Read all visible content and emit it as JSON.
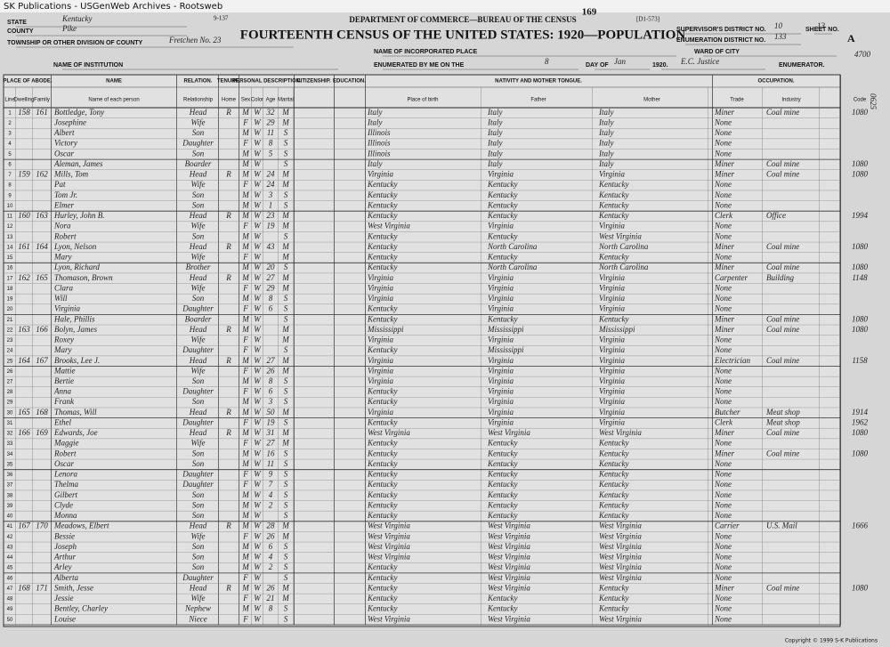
{
  "window": {
    "title": "SK Publications - USGenWeb Archives - Rootsweb"
  },
  "header": {
    "form_number": "9-137",
    "page": "169",
    "code": "[D1-573]",
    "department": "DEPARTMENT OF COMMERCE—BUREAU OF THE CENSUS",
    "title": "FOURTEENTH CENSUS OF THE UNITED STATES: 1920—POPULATION",
    "fields": [
      {
        "label": "STATE",
        "value": "Kentucky"
      },
      {
        "label": "COUNTY",
        "value": "Pike"
      },
      {
        "label": "TOWNSHIP OR OTHER DIVISION OF COUNTY",
        "value": "Fretchen No. 23"
      },
      {
        "label": "NAME OF INSTITUTION"
      },
      {
        "label": "NAME OF INCORPORATED PLACE"
      },
      {
        "label": "ENUMERATED BY ME ON THE",
        "value": "8"
      },
      {
        "label": "DAY OF",
        "value": "Jan"
      },
      {
        "label": "1920.",
        "value": "E.C. Justice"
      },
      {
        "label": "ENUMERATOR."
      },
      {
        "label": "SUPERVISOR'S DISTRICT NO.",
        "value": "10"
      },
      {
        "label": "SHEET NO.",
        "value": "13"
      },
      {
        "label": "ENUMERATION DISTRICT NO.",
        "value": "133"
      },
      {
        "label": "WARD OF CITY"
      },
      {
        "label": "A"
      }
    ],
    "margin_notes": [
      "4700",
      "0625"
    ]
  },
  "table": {
    "groups": [
      "PLACE OF ABODE.",
      "NAME",
      "RELATION.",
      "TENURE.",
      "PERSONAL DESCRIPTION.",
      "CITIZENSHIP.",
      "EDUCATION.",
      "NATIVITY AND MOTHER TONGUE.",
      "OCCUPATION."
    ],
    "columns": [
      "Line",
      "Dwelling",
      "Family",
      "Name of each person",
      "Relationship",
      "Home",
      "Sex",
      "Color",
      "Age",
      "Marital",
      "Place of birth",
      "Father",
      "Mother",
      "Trade",
      "Industry",
      "Code"
    ],
    "rows": [
      [
        1,
        158,
        161,
        "Bottledge, Tony",
        "Head",
        "R",
        "M",
        "W",
        32,
        "M",
        "Italy",
        "Italy",
        "Italy",
        "Miner",
        "Coal mine",
        "1080"
      ],
      [
        2,
        null,
        null,
        "Josephine",
        "Wife",
        null,
        "F",
        "W",
        29,
        "M",
        "Italy",
        "Italy",
        "Italy",
        "None",
        null,
        null
      ],
      [
        3,
        null,
        null,
        "Albert",
        "Son",
        null,
        "M",
        "W",
        11,
        "S",
        "Illinois",
        "Italy",
        "Italy",
        "None",
        null,
        null
      ],
      [
        4,
        null,
        null,
        "Victory",
        "Daughter",
        null,
        "F",
        "W",
        8,
        "S",
        "Illinois",
        "Italy",
        "Italy",
        "None",
        null,
        null
      ],
      [
        5,
        null,
        null,
        "Oscar",
        "Son",
        null,
        "M",
        "W",
        5,
        "S",
        "Illinois",
        "Italy",
        "Italy",
        "None",
        null,
        null
      ],
      [
        6,
        null,
        null,
        "Aleman, James",
        "Boarder",
        null,
        "M",
        "W",
        null,
        "S",
        "Italy",
        "Italy",
        "Italy",
        "Miner",
        "Coal mine",
        "1080"
      ],
      [
        7,
        159,
        162,
        "Mills, Tom",
        "Head",
        "R",
        "M",
        "W",
        24,
        "M",
        "Virginia",
        "Virginia",
        "Virginia",
        "Miner",
        "Coal mine",
        "1080"
      ],
      [
        8,
        null,
        null,
        "Pat",
        "Wife",
        null,
        "F",
        "W",
        24,
        "M",
        "Kentucky",
        "Kentucky",
        "Kentucky",
        "None",
        null,
        null
      ],
      [
        9,
        null,
        null,
        "Tom Jr.",
        "Son",
        null,
        "M",
        "W",
        3,
        "S",
        "Kentucky",
        "Kentucky",
        "Kentucky",
        "None",
        null,
        null
      ],
      [
        10,
        null,
        null,
        "Elmer",
        "Son",
        null,
        "M",
        "W",
        1,
        "S",
        "Kentucky",
        "Kentucky",
        "Kentucky",
        "None",
        null,
        null
      ],
      [
        11,
        160,
        163,
        "Hurley, John B.",
        "Head",
        "R",
        "M",
        "W",
        23,
        "M",
        "Kentucky",
        "Kentucky",
        "Kentucky",
        "Clerk",
        "Office",
        "1994"
      ],
      [
        12,
        null,
        null,
        "Nora",
        "Wife",
        null,
        "F",
        "W",
        19,
        "M",
        "West Virginia",
        "Virginia",
        "Virginia",
        "None",
        null,
        null
      ],
      [
        13,
        null,
        null,
        "Robert",
        "Son",
        null,
        "M",
        "W",
        null,
        "S",
        "Kentucky",
        "Kentucky",
        "West Virginia",
        "None",
        null,
        null
      ],
      [
        14,
        161,
        164,
        "Lyon, Nelson",
        "Head",
        "R",
        "M",
        "W",
        43,
        "M",
        "Kentucky",
        "North Carolina",
        "North Carolina",
        "Miner",
        "Coal mine",
        "1080"
      ],
      [
        15,
        null,
        null,
        "Mary",
        "Wife",
        null,
        "F",
        "W",
        null,
        "M",
        "Kentucky",
        "Kentucky",
        "Kentucky",
        "None",
        null,
        null
      ],
      [
        16,
        null,
        null,
        "Lyon, Richard",
        "Brother",
        null,
        "M",
        "W",
        20,
        "S",
        "Kentucky",
        "North Carolina",
        "North Carolina",
        "Miner",
        "Coal mine",
        "1080"
      ],
      [
        17,
        162,
        165,
        "Thomason, Brown",
        "Head",
        "R",
        "M",
        "W",
        27,
        "M",
        "Virginia",
        "Virginia",
        "Virginia",
        "Carpenter",
        "Building",
        "1148"
      ],
      [
        18,
        null,
        null,
        "Clara",
        "Wife",
        null,
        "F",
        "W",
        29,
        "M",
        "Virginia",
        "Virginia",
        "Virginia",
        "None",
        null,
        null
      ],
      [
        19,
        null,
        null,
        "Will",
        "Son",
        null,
        "M",
        "W",
        8,
        "S",
        "Virginia",
        "Virginia",
        "Virginia",
        "None",
        null,
        null
      ],
      [
        20,
        null,
        null,
        "Virginia",
        "Daughter",
        null,
        "F",
        "W",
        6,
        "S",
        "Kentucky",
        "Virginia",
        "Virginia",
        "None",
        null,
        null
      ],
      [
        21,
        null,
        null,
        "Hale, Phillis",
        "Boarder",
        null,
        "M",
        "W",
        null,
        "S",
        "Kentucky",
        "Kentucky",
        "Kentucky",
        "Miner",
        "Coal mine",
        "1080"
      ],
      [
        22,
        163,
        166,
        "Bolyn, James",
        "Head",
        "R",
        "M",
        "W",
        null,
        "M",
        "Mississippi",
        "Mississippi",
        "Mississippi",
        "Miner",
        "Coal mine",
        "1080"
      ],
      [
        23,
        null,
        null,
        "Roxey",
        "Wife",
        null,
        "F",
        "W",
        null,
        "M",
        "Virginia",
        "Virginia",
        "Virginia",
        "None",
        null,
        null
      ],
      [
        24,
        null,
        null,
        "Mary",
        "Daughter",
        null,
        "F",
        "W",
        null,
        "S",
        "Kentucky",
        "Mississippi",
        "Virginia",
        "None",
        null,
        null
      ],
      [
        25,
        164,
        167,
        "Brooks, Lee J.",
        "Head",
        "R",
        "M",
        "W",
        27,
        "M",
        "Virginia",
        "Virginia",
        "Virginia",
        "Electrician",
        "Coal mine",
        "1158"
      ],
      [
        26,
        null,
        null,
        "Mattie",
        "Wife",
        null,
        "F",
        "W",
        26,
        "M",
        "Virginia",
        "Virginia",
        "Virginia",
        "None",
        null,
        null
      ],
      [
        27,
        null,
        null,
        "Bertie",
        "Son",
        null,
        "M",
        "W",
        8,
        "S",
        "Virginia",
        "Virginia",
        "Virginia",
        "None",
        null,
        null
      ],
      [
        28,
        null,
        null,
        "Anna",
        "Daughter",
        null,
        "F",
        "W",
        6,
        "S",
        "Kentucky",
        "Virginia",
        "Virginia",
        "None",
        null,
        null
      ],
      [
        29,
        null,
        null,
        "Frank",
        "Son",
        null,
        "M",
        "W",
        3,
        "S",
        "Kentucky",
        "Virginia",
        "Virginia",
        "None",
        null,
        null
      ],
      [
        30,
        165,
        168,
        "Thomas, Will",
        "Head",
        "R",
        "M",
        "W",
        50,
        "M",
        "Virginia",
        "Virginia",
        "Virginia",
        "Butcher",
        "Meat shop",
        "1914"
      ],
      [
        31,
        null,
        null,
        "Ethel",
        "Daughter",
        null,
        "F",
        "W",
        19,
        "S",
        "Kentucky",
        "Virginia",
        "Virginia",
        "Clerk",
        "Meat shop",
        "1962"
      ],
      [
        32,
        166,
        169,
        "Edwards, Joe",
        "Head",
        "R",
        "M",
        "W",
        31,
        "M",
        "West Virginia",
        "West Virginia",
        "West Virginia",
        "Miner",
        "Coal mine",
        "1080"
      ],
      [
        33,
        null,
        null,
        "Maggie",
        "Wife",
        null,
        "F",
        "W",
        27,
        "M",
        "Kentucky",
        "Kentucky",
        "Kentucky",
        "None",
        null,
        null
      ],
      [
        34,
        null,
        null,
        "Robert",
        "Son",
        null,
        "M",
        "W",
        16,
        "S",
        "Kentucky",
        "Kentucky",
        "Kentucky",
        "Miner",
        "Coal mine",
        "1080"
      ],
      [
        35,
        null,
        null,
        "Oscar",
        "Son",
        null,
        "M",
        "W",
        11,
        "S",
        "Kentucky",
        "Kentucky",
        "Kentucky",
        "None",
        null,
        null
      ],
      [
        36,
        null,
        null,
        "Lenora",
        "Daughter",
        null,
        "F",
        "W",
        9,
        "S",
        "Kentucky",
        "Kentucky",
        "Kentucky",
        "None",
        null,
        null
      ],
      [
        37,
        null,
        null,
        "Thelma",
        "Daughter",
        null,
        "F",
        "W",
        7,
        "S",
        "Kentucky",
        "Kentucky",
        "Kentucky",
        "None",
        null,
        null
      ],
      [
        38,
        null,
        null,
        "Gilbert",
        "Son",
        null,
        "M",
        "W",
        4,
        "S",
        "Kentucky",
        "Kentucky",
        "Kentucky",
        "None",
        null,
        null
      ],
      [
        39,
        null,
        null,
        "Clyde",
        "Son",
        null,
        "M",
        "W",
        2,
        "S",
        "Kentucky",
        "Kentucky",
        "Kentucky",
        "None",
        null,
        null
      ],
      [
        40,
        null,
        null,
        "Monna",
        "Son",
        null,
        "M",
        "W",
        null,
        "S",
        "Kentucky",
        "Kentucky",
        "Kentucky",
        "None",
        null,
        null
      ],
      [
        41,
        167,
        170,
        "Meadows, Elbert",
        "Head",
        "R",
        "M",
        "W",
        28,
        "M",
        "West Virginia",
        "West Virginia",
        "West Virginia",
        "Carrier",
        "U.S. Mail",
        "1666"
      ],
      [
        42,
        null,
        null,
        "Bessie",
        "Wife",
        null,
        "F",
        "W",
        26,
        "M",
        "West Virginia",
        "West Virginia",
        "West Virginia",
        "None",
        null,
        null
      ],
      [
        43,
        null,
        null,
        "Joseph",
        "Son",
        null,
        "M",
        "W",
        6,
        "S",
        "West Virginia",
        "West Virginia",
        "West Virginia",
        "None",
        null,
        null
      ],
      [
        44,
        null,
        null,
        "Arthur",
        "Son",
        null,
        "M",
        "W",
        4,
        "S",
        "West Virginia",
        "West Virginia",
        "West Virginia",
        "None",
        null,
        null
      ],
      [
        45,
        null,
        null,
        "Arley",
        "Son",
        null,
        "M",
        "W",
        2,
        "S",
        "Kentucky",
        "West Virginia",
        "West Virginia",
        "None",
        null,
        null
      ],
      [
        46,
        null,
        null,
        "Alberta",
        "Daughter",
        null,
        "F",
        "W",
        null,
        "S",
        "Kentucky",
        "West Virginia",
        "West Virginia",
        "None",
        null,
        null
      ],
      [
        47,
        168,
        171,
        "Smith, Jesse",
        "Head",
        "R",
        "M",
        "W",
        26,
        "M",
        "Kentucky",
        "West Virginia",
        "Kentucky",
        "Miner",
        "Coal mine",
        "1080"
      ],
      [
        48,
        null,
        null,
        "Jessie",
        "Wife",
        null,
        "F",
        "W",
        21,
        "M",
        "Kentucky",
        "Kentucky",
        "Kentucky",
        "None",
        null,
        null
      ],
      [
        49,
        null,
        null,
        "Bentley, Charley",
        "Nephew",
        null,
        "M",
        "W",
        8,
        "S",
        "Kentucky",
        "Kentucky",
        "Kentucky",
        "None",
        null,
        null
      ],
      [
        50,
        null,
        null,
        "Louise",
        "Niece",
        null,
        "F",
        "W",
        null,
        "S",
        "West Virginia",
        "West Virginia",
        "West Virginia",
        "None",
        null,
        null
      ]
    ]
  },
  "footer": {
    "copyright": "Copyright © 1999 S-K Publications"
  }
}
